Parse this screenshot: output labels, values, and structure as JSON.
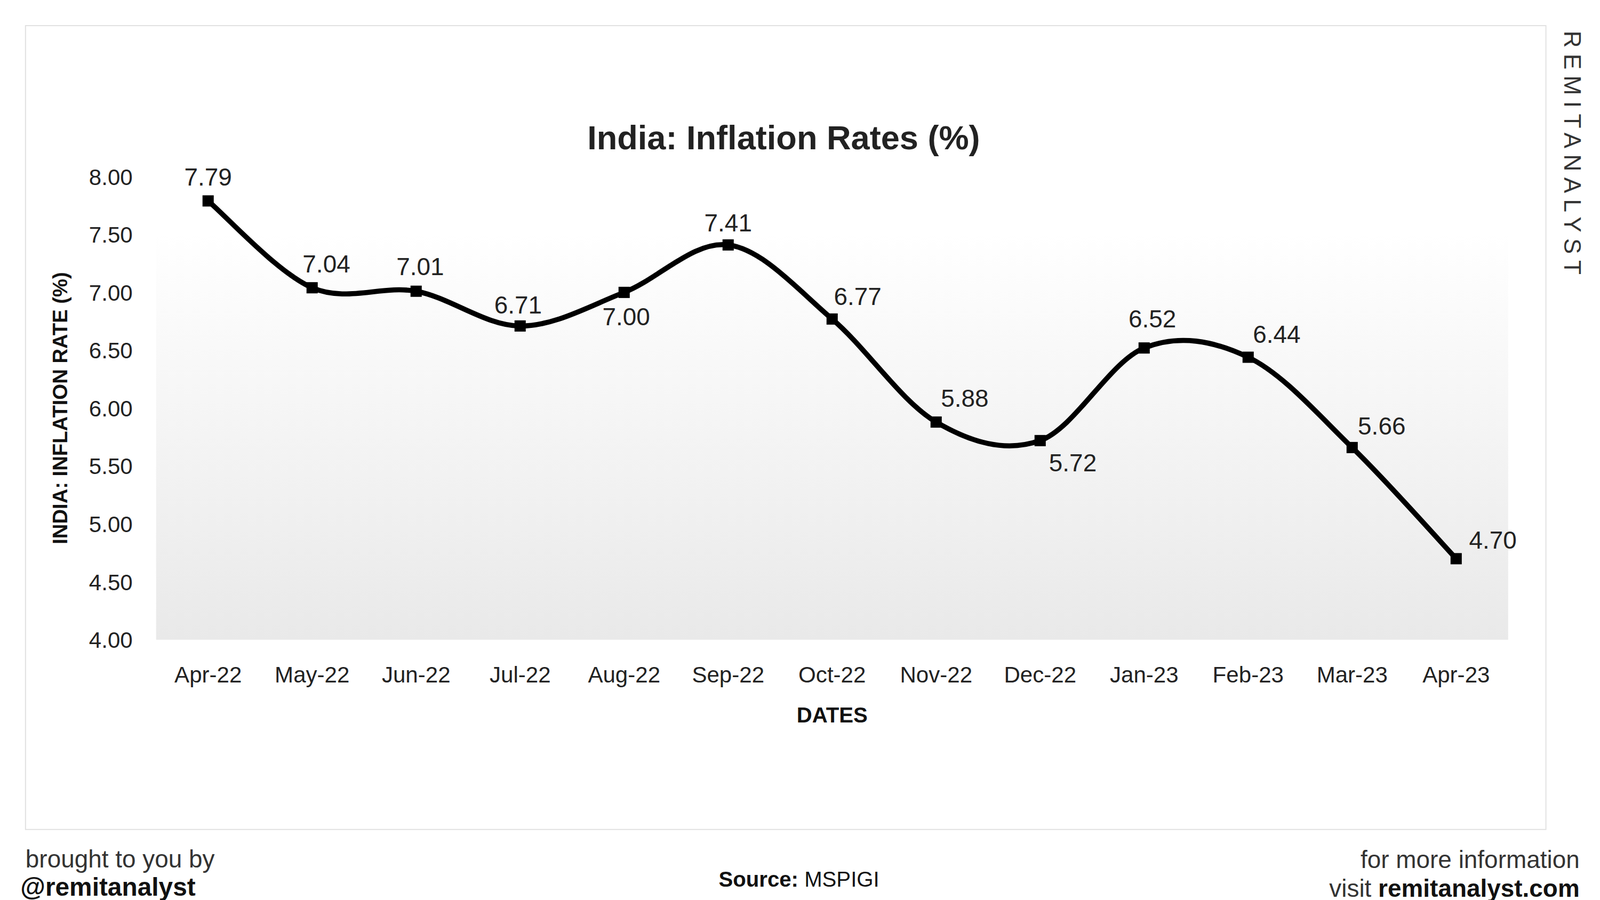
{
  "chart_data": {
    "type": "line",
    "title": "India: Inflation Rates (%)",
    "x_label": "DATES",
    "y_label": "INDIA: INFLATION RATE (%)",
    "categories": [
      "Apr-22",
      "May-22",
      "Jun-22",
      "Jul-22",
      "Aug-22",
      "Sep-22",
      "Oct-22",
      "Nov-22",
      "Dec-22",
      "Jan-23",
      "Feb-23",
      "Mar-23",
      "Apr-23"
    ],
    "values": [
      7.79,
      7.04,
      7.01,
      6.71,
      7.0,
      7.41,
      6.77,
      5.88,
      5.72,
      6.52,
      6.44,
      5.66,
      4.7
    ],
    "value_labels": [
      "7.79",
      "7.04",
      "7.01",
      "6.71",
      "7.00",
      "7.41",
      "6.77",
      "5.88",
      "5.72",
      "6.52",
      "6.44",
      "5.66",
      "4.70"
    ],
    "color": "#000000",
    "marker": "square",
    "line_style": "smooth",
    "data_labels": true,
    "grid": false,
    "ylim": [
      4,
      8
    ],
    "yticks": [
      {
        "value": 4,
        "label": "4.00"
      },
      {
        "value": 4.5,
        "label": "4.50"
      },
      {
        "value": 5,
        "label": "5.00"
      },
      {
        "value": 5.5,
        "label": "5.50"
      },
      {
        "value": 6,
        "label": "6.00"
      },
      {
        "value": 6.5,
        "label": "6.50"
      },
      {
        "value": 7,
        "label": "7.00"
      },
      {
        "value": 7.5,
        "label": "7.50"
      },
      {
        "value": 8,
        "label": "8.00"
      }
    ],
    "annotations": [
      "brought to you by",
      "@remitanalyst",
      "Source:",
      "MSPIGI",
      "for more information",
      "visit",
      "remitanalyst.com",
      "REMITANALYST"
    ]
  }
}
